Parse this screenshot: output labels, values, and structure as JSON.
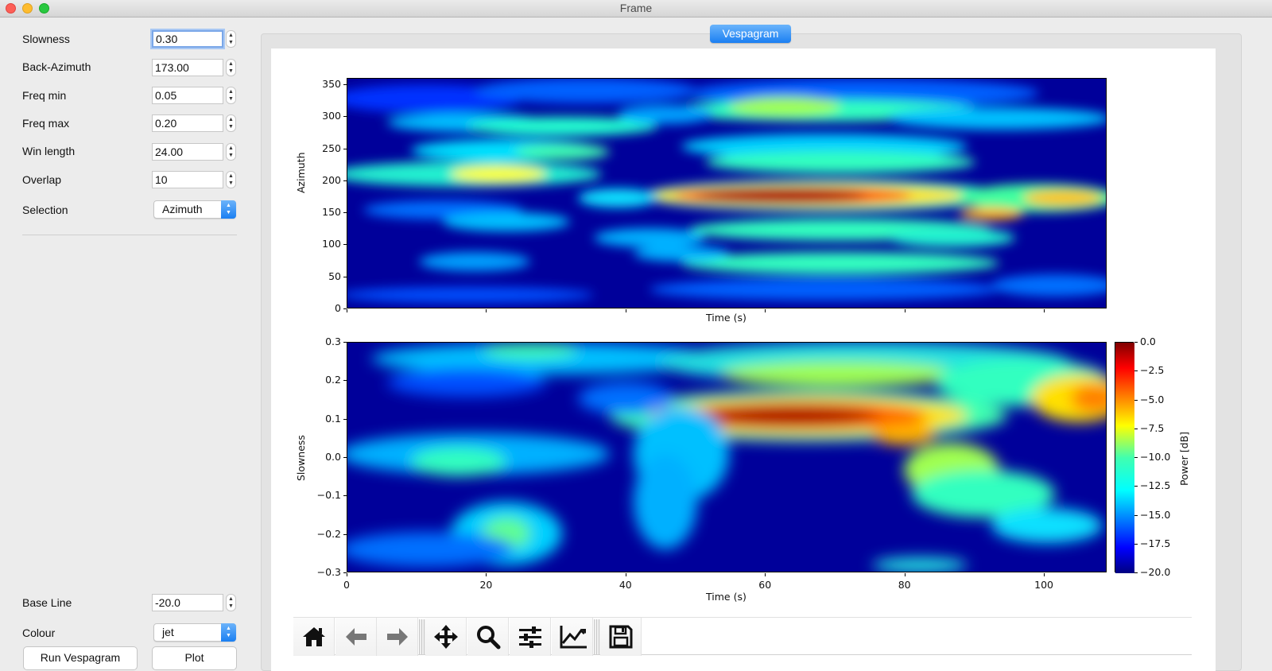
{
  "window": {
    "title": "Frame"
  },
  "sidebar": {
    "fields": [
      {
        "label": "Slowness",
        "value": "0.30"
      },
      {
        "label": "Back-Azimuth",
        "value": "173.00"
      },
      {
        "label": "Freq min",
        "value": "0.05"
      },
      {
        "label": "Freq max",
        "value": "0.20"
      },
      {
        "label": "Win length",
        "value": "24.00"
      },
      {
        "label": "Overlap",
        "value": "10"
      }
    ],
    "selection": {
      "label": "Selection",
      "value": "Azimuth"
    },
    "baseline": {
      "label": "Base Line",
      "value": "-20.0"
    },
    "colour": {
      "label": "Colour",
      "value": "jet"
    },
    "buttons": {
      "run": "Run Vespagram",
      "plot": "Plot"
    }
  },
  "tab": {
    "label": "Vespagram"
  },
  "plots": {
    "top": {
      "ylabel": "Azimuth",
      "xlabel": "Time (s)",
      "yticks": [
        "350",
        "300",
        "250",
        "200",
        "150",
        "100",
        "50",
        "0"
      ]
    },
    "bottom": {
      "ylabel": "Slowness",
      "xlabel": "Time (s)",
      "yticks": [
        "0.3",
        "0.2",
        "0.1",
        "0.0",
        "−0.1",
        "−0.2",
        "−0.3"
      ],
      "xticks": [
        "0",
        "20",
        "40",
        "60",
        "80",
        "100"
      ]
    },
    "colorbar": {
      "label": "Power [dB]",
      "ticks": [
        "0.0",
        "−2.5",
        "−5.0",
        "−7.5",
        "−10.0",
        "−12.5",
        "−15.0",
        "−17.5",
        "−20.0"
      ]
    },
    "colormap": "jet"
  },
  "toolbar": {
    "icons": [
      "home-icon",
      "back-arrow-icon",
      "forward-arrow-icon",
      "pan-icon",
      "zoom-icon",
      "subplots-icon",
      "edit-axis-icon",
      "save-icon"
    ]
  },
  "chart_data": [
    {
      "type": "heatmap",
      "title": "",
      "xlabel": "Time (s)",
      "ylabel": "Azimuth",
      "xlim": [
        0,
        109
      ],
      "ylim": [
        0,
        360
      ],
      "colormap": "jet",
      "clim": [
        -20,
        0
      ],
      "peak": {
        "time_range": [
          53,
          77
        ],
        "azimuth": 175,
        "power_db": 0
      }
    },
    {
      "type": "heatmap",
      "title": "",
      "xlabel": "Time (s)",
      "ylabel": "Slowness",
      "xlim": [
        0,
        109
      ],
      "ylim": [
        -0.3,
        0.3
      ],
      "colormap": "jet",
      "clim": [
        -20,
        0
      ],
      "colorbar_label": "Power [dB]",
      "peak": {
        "time_range": [
          53,
          77
        ],
        "slowness": 0.1,
        "power_db": 0
      }
    }
  ]
}
